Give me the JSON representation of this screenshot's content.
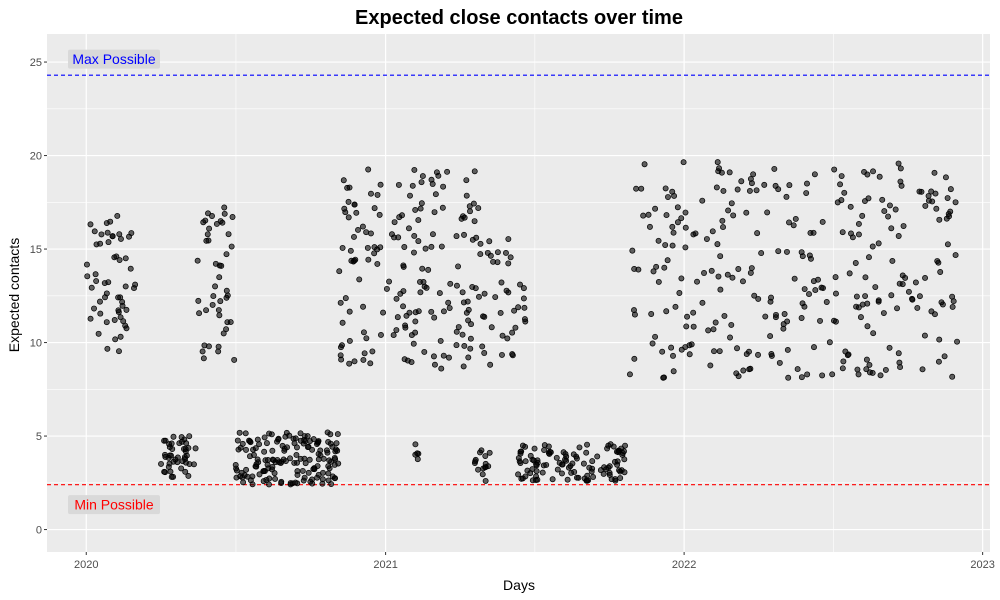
{
  "chart_data": {
    "type": "scatter",
    "title": "Expected close contacts over time",
    "xlabel": "Days",
    "ylabel": "Expected contacts",
    "x_axis": {
      "kind": "date",
      "range": [
        "2019-11-14",
        "2023-01-10"
      ],
      "ticks": [
        {
          "value": "2020-01-01",
          "label": "2020"
        },
        {
          "value": "2021-01-01",
          "label": "2021"
        },
        {
          "value": "2022-01-01",
          "label": "2022"
        },
        {
          "value": "2023-01-01",
          "label": "2023"
        }
      ]
    },
    "y_axis": {
      "range": [
        -1.2,
        26.5
      ],
      "ticks": [
        0,
        5,
        10,
        15,
        20,
        25
      ]
    },
    "grid": true,
    "reference_lines": [
      {
        "name": "max",
        "value": 24.3,
        "label": "Max Possible",
        "color": "#0000ff"
      },
      {
        "name": "min",
        "value": 2.4,
        "label": "Min Possible",
        "color": "#ff0000"
      }
    ],
    "point_style": {
      "fill": "#000000",
      "opacity": 0.6,
      "stroke": "#000000"
    },
    "point_groups": [
      {
        "start": "2020-01-01",
        "end": "2020-03-01",
        "low": 9.5,
        "high": 16.8,
        "count": 55
      },
      {
        "start": "2020-04-01",
        "end": "2020-05-15",
        "low": 2.8,
        "high": 5.0,
        "count": 45
      },
      {
        "start": "2020-05-15",
        "end": "2020-07-01",
        "low": 8.8,
        "high": 17.3,
        "count": 45
      },
      {
        "start": "2020-07-01",
        "end": "2020-11-05",
        "low": 2.4,
        "high": 5.2,
        "count": 160
      },
      {
        "start": "2020-11-05",
        "end": "2021-04-25",
        "low": 8.6,
        "high": 19.6,
        "count": 170
      },
      {
        "start": "2021-02-05",
        "end": "2021-02-12",
        "low": 3.0,
        "high": 4.6,
        "count": 5
      },
      {
        "start": "2021-04-20",
        "end": "2021-05-10",
        "low": 2.5,
        "high": 4.4,
        "count": 15
      },
      {
        "start": "2021-04-25",
        "end": "2021-06-25",
        "low": 8.8,
        "high": 15.8,
        "count": 40
      },
      {
        "start": "2021-06-10",
        "end": "2021-10-25",
        "low": 2.6,
        "high": 4.6,
        "count": 110
      },
      {
        "start": "2021-10-25",
        "end": "2022-12-01",
        "low": 8.1,
        "high": 19.7,
        "count": 300
      }
    ]
  }
}
